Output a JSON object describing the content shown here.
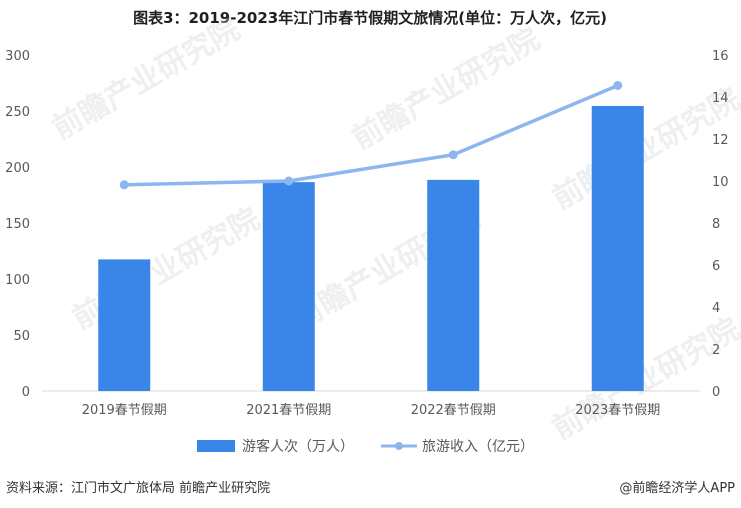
{
  "chart_data": {
    "type": "bar",
    "title": "图表3：2019-2023年江门市春节假期文旅情况(单位：万人次，亿元)",
    "categories": [
      "2019春节假期",
      "2021春节假期",
      "2022春节假期",
      "2023春节假期"
    ],
    "series": [
      {
        "name": "游客人次（万人）",
        "type": "bar",
        "axis": "left",
        "color": "#3a86e8",
        "values": [
          117.5,
          186.5,
          188.5,
          254.5
        ]
      },
      {
        "name": "旅游收入（亿元）",
        "type": "line",
        "axis": "right",
        "color": "#8db6ef",
        "values": [
          9.82,
          10.0,
          11.25,
          14.55
        ]
      }
    ],
    "y_left": {
      "ylim": [
        0,
        300
      ],
      "ticks": [
        "0",
        "50",
        "100",
        "150",
        "200",
        "250",
        "300"
      ]
    },
    "y_right": {
      "ylim": [
        0,
        16
      ],
      "ticks": [
        "0",
        "2",
        "4",
        "6",
        "8",
        "10",
        "12",
        "14",
        "16"
      ]
    },
    "grid": false,
    "legend_placement": "bottom-center"
  },
  "footer": {
    "source": "资料来源：江门市文广旅体局 前瞻产业研究院",
    "brand": "@前瞻经济学人APP"
  },
  "watermark": {
    "text": "前瞻产业研究院"
  }
}
